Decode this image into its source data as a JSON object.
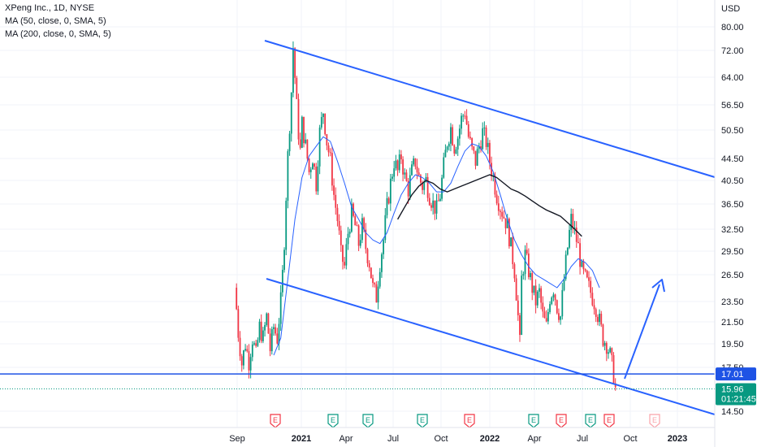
{
  "legend": {
    "title": "XPeng Inc., 1D, NYSE",
    "ma50": "MA (50, close, 0, SMA, 5)",
    "ma200": "MA (200, close, 0, SMA, 5)"
  },
  "chart_data": {
    "type": "candlestick",
    "currency": "USD",
    "y_ticks": [
      "80.00",
      "72.00",
      "64.00",
      "56.50",
      "50.50",
      "44.50",
      "40.50",
      "36.50",
      "32.50",
      "29.50",
      "26.50",
      "23.50",
      "21.50",
      "19.50",
      "17.50",
      "14.50"
    ],
    "x_ticks": [
      {
        "label": "Sep",
        "bold": false
      },
      {
        "label": "2021",
        "bold": true
      },
      {
        "label": "Apr",
        "bold": false
      },
      {
        "label": "Jul",
        "bold": false
      },
      {
        "label": "Oct",
        "bold": false
      },
      {
        "label": "2022",
        "bold": true
      },
      {
        "label": "Apr",
        "bold": false
      },
      {
        "label": "Jul",
        "bold": false
      },
      {
        "label": "Oct",
        "bold": false
      },
      {
        "label": "2023",
        "bold": true
      }
    ],
    "ylim": [
      14.0,
      84.0
    ],
    "scale": "log",
    "price_series": [
      {
        "t": 0,
        "v": 25.0
      },
      {
        "t": 2,
        "v": 20.5
      },
      {
        "t": 4,
        "v": 17.8
      },
      {
        "t": 6,
        "v": 19.5
      },
      {
        "t": 8,
        "v": 18.0
      },
      {
        "t": 10,
        "v": 20.0
      },
      {
        "t": 12,
        "v": 18.5
      },
      {
        "t": 14,
        "v": 21.0
      },
      {
        "t": 16,
        "v": 20.0
      },
      {
        "t": 18,
        "v": 22.0
      },
      {
        "t": 20,
        "v": 19.0
      },
      {
        "t": 22,
        "v": 21.0
      },
      {
        "t": 24,
        "v": 20.0
      },
      {
        "t": 26,
        "v": 23.5
      },
      {
        "t": 27,
        "v": 26.5
      },
      {
        "t": 28,
        "v": 31.0
      },
      {
        "t": 29,
        "v": 38.0
      },
      {
        "t": 30,
        "v": 45.0
      },
      {
        "t": 31,
        "v": 52.0
      },
      {
        "t": 32,
        "v": 60.0
      },
      {
        "t": 33,
        "v": 73.0
      },
      {
        "t": 34,
        "v": 64.0
      },
      {
        "t": 35,
        "v": 56.0
      },
      {
        "t": 36,
        "v": 50.0
      },
      {
        "t": 37,
        "v": 46.0
      },
      {
        "t": 38,
        "v": 52.0
      },
      {
        "t": 40,
        "v": 47.0
      },
      {
        "t": 42,
        "v": 42.0
      },
      {
        "t": 44,
        "v": 45.0
      },
      {
        "t": 46,
        "v": 40.0
      },
      {
        "t": 48,
        "v": 50.0
      },
      {
        "t": 50,
        "v": 55.0
      },
      {
        "t": 52,
        "v": 48.0
      },
      {
        "t": 54,
        "v": 44.0
      },
      {
        "t": 56,
        "v": 38.0
      },
      {
        "t": 58,
        "v": 34.0
      },
      {
        "t": 60,
        "v": 29.0
      },
      {
        "t": 62,
        "v": 27.5
      },
      {
        "t": 64,
        "v": 32.0
      },
      {
        "t": 66,
        "v": 35.0
      },
      {
        "t": 68,
        "v": 33.0
      },
      {
        "t": 70,
        "v": 30.5
      },
      {
        "t": 72,
        "v": 33.0
      },
      {
        "t": 74,
        "v": 30.0
      },
      {
        "t": 76,
        "v": 28.0
      },
      {
        "t": 78,
        "v": 25.0
      },
      {
        "t": 80,
        "v": 24.0
      },
      {
        "t": 82,
        "v": 28.0
      },
      {
        "t": 84,
        "v": 31.0
      },
      {
        "t": 86,
        "v": 36.0
      },
      {
        "t": 88,
        "v": 40.0
      },
      {
        "t": 90,
        "v": 44.0
      },
      {
        "t": 92,
        "v": 42.0
      },
      {
        "t": 94,
        "v": 45.0
      },
      {
        "t": 96,
        "v": 41.0
      },
      {
        "t": 98,
        "v": 39.0
      },
      {
        "t": 100,
        "v": 42.0
      },
      {
        "t": 102,
        "v": 44.0
      },
      {
        "t": 104,
        "v": 41.0
      },
      {
        "t": 106,
        "v": 39.5
      },
      {
        "t": 108,
        "v": 40.5
      },
      {
        "t": 110,
        "v": 38.0
      },
      {
        "t": 112,
        "v": 36.5
      },
      {
        "t": 114,
        "v": 35.5
      },
      {
        "t": 116,
        "v": 38.0
      },
      {
        "t": 118,
        "v": 43.0
      },
      {
        "t": 120,
        "v": 48.0
      },
      {
        "t": 122,
        "v": 51.0
      },
      {
        "t": 124,
        "v": 47.0
      },
      {
        "t": 126,
        "v": 49.0
      },
      {
        "t": 128,
        "v": 53.0
      },
      {
        "t": 130,
        "v": 55.0
      },
      {
        "t": 132,
        "v": 49.0
      },
      {
        "t": 134,
        "v": 46.0
      },
      {
        "t": 136,
        "v": 44.0
      },
      {
        "t": 138,
        "v": 47.0
      },
      {
        "t": 140,
        "v": 50.0
      },
      {
        "t": 142,
        "v": 48.0
      },
      {
        "t": 144,
        "v": 44.0
      },
      {
        "t": 146,
        "v": 41.0
      },
      {
        "t": 148,
        "v": 38.0
      },
      {
        "t": 150,
        "v": 36.0
      },
      {
        "t": 152,
        "v": 34.5
      },
      {
        "t": 154,
        "v": 33.0
      },
      {
        "t": 156,
        "v": 30.0
      },
      {
        "t": 158,
        "v": 27.0
      },
      {
        "t": 160,
        "v": 22.0
      },
      {
        "t": 161,
        "v": 19.5
      },
      {
        "t": 162,
        "v": 26.0
      },
      {
        "t": 164,
        "v": 29.0
      },
      {
        "t": 166,
        "v": 27.0
      },
      {
        "t": 168,
        "v": 25.0
      },
      {
        "t": 170,
        "v": 23.5
      },
      {
        "t": 172,
        "v": 24.5
      },
      {
        "t": 174,
        "v": 22.0
      },
      {
        "t": 176,
        "v": 21.0
      },
      {
        "t": 178,
        "v": 24.0
      },
      {
        "t": 180,
        "v": 25.0
      },
      {
        "t": 182,
        "v": 23.0
      },
      {
        "t": 184,
        "v": 22.0
      },
      {
        "t": 186,
        "v": 26.0
      },
      {
        "t": 188,
        "v": 30.0
      },
      {
        "t": 190,
        "v": 34.0
      },
      {
        "t": 192,
        "v": 32.0
      },
      {
        "t": 194,
        "v": 30.0
      },
      {
        "t": 196,
        "v": 27.0
      },
      {
        "t": 198,
        "v": 26.0
      },
      {
        "t": 200,
        "v": 25.0
      },
      {
        "t": 202,
        "v": 24.0
      },
      {
        "t": 204,
        "v": 23.0
      },
      {
        "t": 206,
        "v": 21.5
      },
      {
        "t": 208,
        "v": 20.0
      },
      {
        "t": 210,
        "v": 19.5
      },
      {
        "t": 212,
        "v": 18.5
      },
      {
        "t": 214,
        "v": 17.0
      },
      {
        "t": 215,
        "v": 15.96
      }
    ],
    "ma50": [
      {
        "t": 22,
        "v": 18.5
      },
      {
        "t": 26,
        "v": 20.0
      },
      {
        "t": 30,
        "v": 26.0
      },
      {
        "t": 34,
        "v": 34.0
      },
      {
        "t": 38,
        "v": 41.0
      },
      {
        "t": 42,
        "v": 45.0
      },
      {
        "t": 46,
        "v": 47.0
      },
      {
        "t": 50,
        "v": 49.0
      },
      {
        "t": 54,
        "v": 48.0
      },
      {
        "t": 58,
        "v": 44.0
      },
      {
        "t": 62,
        "v": 40.0
      },
      {
        "t": 66,
        "v": 36.0
      },
      {
        "t": 70,
        "v": 34.0
      },
      {
        "t": 74,
        "v": 32.0
      },
      {
        "t": 78,
        "v": 31.0
      },
      {
        "t": 82,
        "v": 30.5
      },
      {
        "t": 86,
        "v": 32.0
      },
      {
        "t": 90,
        "v": 35.0
      },
      {
        "t": 94,
        "v": 38.0
      },
      {
        "t": 98,
        "v": 40.0
      },
      {
        "t": 102,
        "v": 41.5
      },
      {
        "t": 106,
        "v": 41.0
      },
      {
        "t": 110,
        "v": 40.0
      },
      {
        "t": 114,
        "v": 38.5
      },
      {
        "t": 118,
        "v": 38.5
      },
      {
        "t": 122,
        "v": 40.0
      },
      {
        "t": 126,
        "v": 43.0
      },
      {
        "t": 130,
        "v": 46.0
      },
      {
        "t": 134,
        "v": 47.5
      },
      {
        "t": 138,
        "v": 47.0
      },
      {
        "t": 142,
        "v": 45.0
      },
      {
        "t": 146,
        "v": 42.0
      },
      {
        "t": 150,
        "v": 38.0
      },
      {
        "t": 154,
        "v": 34.0
      },
      {
        "t": 158,
        "v": 31.0
      },
      {
        "t": 162,
        "v": 29.0
      },
      {
        "t": 166,
        "v": 27.5
      },
      {
        "t": 170,
        "v": 26.5
      },
      {
        "t": 174,
        "v": 26.0
      },
      {
        "t": 178,
        "v": 25.5
      },
      {
        "t": 182,
        "v": 25.0
      },
      {
        "t": 186,
        "v": 26.0
      },
      {
        "t": 190,
        "v": 27.5
      },
      {
        "t": 194,
        "v": 28.5
      },
      {
        "t": 198,
        "v": 28.0
      },
      {
        "t": 202,
        "v": 27.0
      },
      {
        "t": 206,
        "v": 25.0
      }
    ],
    "ma200": [
      {
        "t": 92,
        "v": 34.0
      },
      {
        "t": 96,
        "v": 36.0
      },
      {
        "t": 100,
        "v": 38.0
      },
      {
        "t": 104,
        "v": 39.5
      },
      {
        "t": 108,
        "v": 40.5
      },
      {
        "t": 112,
        "v": 40.0
      },
      {
        "t": 116,
        "v": 39.0
      },
      {
        "t": 120,
        "v": 38.5
      },
      {
        "t": 124,
        "v": 39.0
      },
      {
        "t": 128,
        "v": 39.5
      },
      {
        "t": 132,
        "v": 40.0
      },
      {
        "t": 136,
        "v": 40.5
      },
      {
        "t": 140,
        "v": 41.0
      },
      {
        "t": 144,
        "v": 41.5
      },
      {
        "t": 148,
        "v": 41.0
      },
      {
        "t": 152,
        "v": 40.0
      },
      {
        "t": 156,
        "v": 39.0
      },
      {
        "t": 160,
        "v": 38.5
      },
      {
        "t": 164,
        "v": 37.8
      },
      {
        "t": 168,
        "v": 37.0
      },
      {
        "t": 172,
        "v": 36.2
      },
      {
        "t": 176,
        "v": 35.5
      },
      {
        "t": 180,
        "v": 35.0
      },
      {
        "t": 184,
        "v": 34.5
      },
      {
        "t": 188,
        "v": 33.5
      },
      {
        "t": 192,
        "v": 32.5
      },
      {
        "t": 196,
        "v": 31.5
      }
    ],
    "horizontal_level": {
      "price": 17.01,
      "label": "17.01",
      "color": "#1e53e5"
    },
    "last_price": {
      "price": 15.96,
      "label": "15.96",
      "countdown": "01:21:45",
      "color": "#089981"
    },
    "channel_color": "#2962ff",
    "up_color": "#089981",
    "down_color": "#f23645",
    "ma50_color": "#2962ff",
    "ma200_color": "#131722",
    "earnings_markers": [
      {
        "label": "E",
        "color": "#f23645",
        "faded": false
      },
      {
        "label": "E",
        "color": "#089981",
        "faded": false
      },
      {
        "label": "E",
        "color": "#089981",
        "faded": false
      },
      {
        "label": "E",
        "color": "#089981",
        "faded": false
      },
      {
        "label": "E",
        "color": "#f23645",
        "faded": false
      },
      {
        "label": "E",
        "color": "#089981",
        "faded": false
      },
      {
        "label": "E",
        "color": "#f23645",
        "faded": false
      },
      {
        "label": "E",
        "color": "#089981",
        "faded": false
      },
      {
        "label": "E",
        "color": "#f23645",
        "faded": false
      },
      {
        "label": "E",
        "color": "#f23645",
        "faded": true
      }
    ]
  }
}
